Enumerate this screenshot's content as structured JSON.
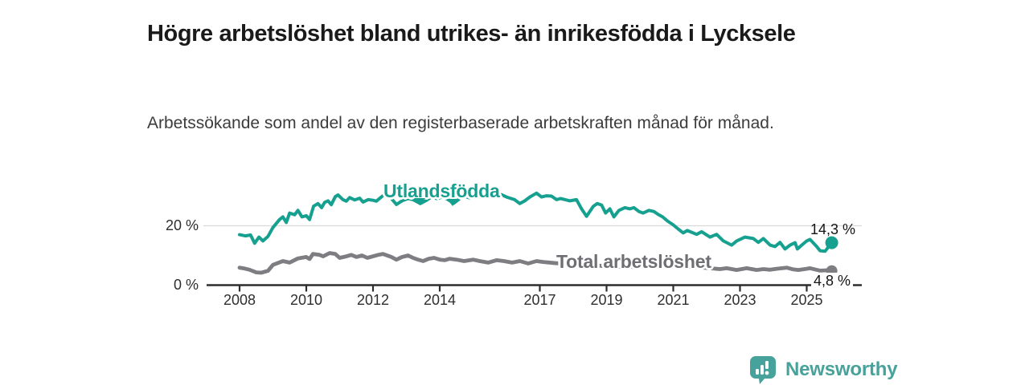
{
  "header": {
    "title": "Högre arbetslöshet bland utrikes- än inrikesfödda i Lycksele",
    "subtitle": "Arbetssökande som andel av den registerbaserade arbetskraften månad för månad."
  },
  "footer": {
    "brand": "Newsworthy",
    "logo_icon": "bar-chart-speech-bubble-icon"
  },
  "colors": {
    "accent_teal": "#16a08f",
    "series_gray": "#7d7d82",
    "gray_label": "#6e6e73",
    "logo_teal": "#46a29a",
    "gridline": "#d9d9d9",
    "axis": "#2d2d2d",
    "text": "#1a1a1a"
  },
  "chart_data": {
    "type": "line",
    "title": "Högre arbetslöshet bland utrikes- än inrikesfödda i Lycksele",
    "subtitle": "Arbetssökande som andel av den registerbaserade arbetskraften månad för månad.",
    "grid": "horizontal-20-only",
    "legend_position": "inline-labels",
    "x_axis": {
      "range": [
        2008,
        2025.75
      ],
      "ticks": [
        2008,
        2010,
        2012,
        2014,
        2017,
        2019,
        2021,
        2023,
        2025
      ]
    },
    "y_axis": {
      "unit": "%",
      "range": [
        0,
        32
      ],
      "ticks": [
        {
          "value": 0,
          "label": "0 %"
        },
        {
          "value": 20,
          "label": "20 %"
        }
      ]
    },
    "series": [
      {
        "name": "Utlandsfödda",
        "color": "#16a08f",
        "end_label": "14,3 %",
        "end_value": 14.3,
        "points": [
          [
            2008.0,
            17.0
          ],
          [
            2008.17,
            16.6
          ],
          [
            2008.33,
            16.9
          ],
          [
            2008.45,
            14.1
          ],
          [
            2008.58,
            16.2
          ],
          [
            2008.7,
            14.9
          ],
          [
            2008.85,
            16.4
          ],
          [
            2009.0,
            19.4
          ],
          [
            2009.2,
            22.1
          ],
          [
            2009.3,
            23.0
          ],
          [
            2009.4,
            21.1
          ],
          [
            2009.5,
            24.3
          ],
          [
            2009.65,
            23.7
          ],
          [
            2009.75,
            25.2
          ],
          [
            2009.87,
            23.0
          ],
          [
            2010.0,
            23.4
          ],
          [
            2010.1,
            22.1
          ],
          [
            2010.22,
            26.6
          ],
          [
            2010.35,
            27.5
          ],
          [
            2010.46,
            26.1
          ],
          [
            2010.55,
            27.9
          ],
          [
            2010.65,
            28.4
          ],
          [
            2010.75,
            27.1
          ],
          [
            2010.87,
            29.8
          ],
          [
            2010.95,
            30.4
          ],
          [
            2011.1,
            28.8
          ],
          [
            2011.2,
            28.3
          ],
          [
            2011.3,
            29.5
          ],
          [
            2011.45,
            28.7
          ],
          [
            2011.6,
            29.3
          ],
          [
            2011.7,
            28.0
          ],
          [
            2011.85,
            28.8
          ],
          [
            2012.0,
            28.6
          ],
          [
            2012.1,
            28.3
          ],
          [
            2012.25,
            29.7
          ],
          [
            2012.4,
            31.0
          ],
          [
            2012.55,
            29.2
          ],
          [
            2012.7,
            27.2
          ],
          [
            2012.87,
            28.4
          ],
          [
            2013.05,
            29.2
          ],
          [
            2013.2,
            28.8
          ],
          [
            2013.42,
            27.5
          ],
          [
            2013.6,
            28.6
          ],
          [
            2013.75,
            29.7
          ],
          [
            2013.9,
            29.2
          ],
          [
            2014.1,
            29.7
          ],
          [
            2014.25,
            28.8
          ],
          [
            2014.42,
            27.6
          ],
          [
            2014.6,
            29.2
          ],
          [
            2014.75,
            29.9
          ],
          [
            2014.9,
            29.4
          ],
          [
            2015.1,
            29.8
          ],
          [
            2015.25,
            30.2
          ],
          [
            2015.4,
            29.5
          ],
          [
            2015.6,
            30.0
          ],
          [
            2015.83,
            30.6
          ],
          [
            2016.0,
            29.7
          ],
          [
            2016.24,
            28.8
          ],
          [
            2016.4,
            27.5
          ],
          [
            2016.55,
            28.4
          ],
          [
            2016.7,
            29.7
          ],
          [
            2016.9,
            31.0
          ],
          [
            2017.05,
            29.7
          ],
          [
            2017.2,
            30.1
          ],
          [
            2017.35,
            30.0
          ],
          [
            2017.5,
            28.8
          ],
          [
            2017.62,
            29.2
          ],
          [
            2017.76,
            28.8
          ],
          [
            2017.9,
            28.4
          ],
          [
            2018.1,
            28.8
          ],
          [
            2018.25,
            25.7
          ],
          [
            2018.4,
            23.2
          ],
          [
            2018.6,
            26.5
          ],
          [
            2018.72,
            27.5
          ],
          [
            2018.85,
            27.0
          ],
          [
            2018.97,
            24.3
          ],
          [
            2019.1,
            25.7
          ],
          [
            2019.22,
            23.0
          ],
          [
            2019.37,
            25.2
          ],
          [
            2019.55,
            26.1
          ],
          [
            2019.7,
            25.7
          ],
          [
            2019.82,
            26.1
          ],
          [
            2019.97,
            24.8
          ],
          [
            2020.1,
            24.3
          ],
          [
            2020.27,
            25.2
          ],
          [
            2020.42,
            24.8
          ],
          [
            2020.55,
            23.8
          ],
          [
            2020.68,
            23.0
          ],
          [
            2020.83,
            21.6
          ],
          [
            2021.0,
            20.3
          ],
          [
            2021.15,
            18.9
          ],
          [
            2021.3,
            17.6
          ],
          [
            2021.42,
            18.4
          ],
          [
            2021.55,
            17.8
          ],
          [
            2021.7,
            17.1
          ],
          [
            2021.85,
            18.0
          ],
          [
            2022.1,
            16.2
          ],
          [
            2022.3,
            17.1
          ],
          [
            2022.5,
            14.9
          ],
          [
            2022.75,
            13.5
          ],
          [
            2022.9,
            14.9
          ],
          [
            2023.15,
            16.2
          ],
          [
            2023.4,
            15.7
          ],
          [
            2023.55,
            14.4
          ],
          [
            2023.7,
            15.7
          ],
          [
            2023.9,
            13.5
          ],
          [
            2024.05,
            13.0
          ],
          [
            2024.2,
            14.4
          ],
          [
            2024.35,
            12.2
          ],
          [
            2024.5,
            13.5
          ],
          [
            2024.65,
            14.3
          ],
          [
            2024.72,
            12.2
          ],
          [
            2024.85,
            13.5
          ],
          [
            2025.0,
            14.9
          ],
          [
            2025.1,
            15.4
          ],
          [
            2025.3,
            13.0
          ],
          [
            2025.4,
            11.6
          ],
          [
            2025.55,
            11.4
          ],
          [
            2025.75,
            14.3
          ]
        ]
      },
      {
        "name": "Total arbetslöshet",
        "color": "#7d7d82",
        "end_label": "4,8 %",
        "end_value": 4.8,
        "points": [
          [
            2008.0,
            5.9
          ],
          [
            2008.15,
            5.6
          ],
          [
            2008.3,
            5.2
          ],
          [
            2008.5,
            4.3
          ],
          [
            2008.65,
            4.2
          ],
          [
            2008.85,
            4.8
          ],
          [
            2009.0,
            6.8
          ],
          [
            2009.3,
            8.1
          ],
          [
            2009.5,
            7.6
          ],
          [
            2009.75,
            9.0
          ],
          [
            2010.0,
            9.5
          ],
          [
            2010.1,
            8.8
          ],
          [
            2010.2,
            10.5
          ],
          [
            2010.4,
            10.2
          ],
          [
            2010.5,
            9.7
          ],
          [
            2010.7,
            10.8
          ],
          [
            2010.87,
            10.5
          ],
          [
            2011.0,
            9.2
          ],
          [
            2011.2,
            9.7
          ],
          [
            2011.35,
            10.2
          ],
          [
            2011.5,
            9.5
          ],
          [
            2011.67,
            10.0
          ],
          [
            2011.83,
            9.2
          ],
          [
            2012.0,
            9.7
          ],
          [
            2012.15,
            10.2
          ],
          [
            2012.3,
            10.5
          ],
          [
            2012.55,
            9.5
          ],
          [
            2012.7,
            8.6
          ],
          [
            2012.87,
            9.5
          ],
          [
            2013.05,
            10.0
          ],
          [
            2013.2,
            9.2
          ],
          [
            2013.35,
            8.6
          ],
          [
            2013.5,
            8.1
          ],
          [
            2013.67,
            8.9
          ],
          [
            2013.83,
            9.2
          ],
          [
            2014.0,
            8.6
          ],
          [
            2014.15,
            8.4
          ],
          [
            2014.3,
            8.9
          ],
          [
            2014.5,
            8.6
          ],
          [
            2014.73,
            8.1
          ],
          [
            2015.0,
            8.6
          ],
          [
            2015.2,
            8.1
          ],
          [
            2015.45,
            7.6
          ],
          [
            2015.7,
            8.4
          ],
          [
            2015.92,
            8.1
          ],
          [
            2016.17,
            7.6
          ],
          [
            2016.4,
            8.1
          ],
          [
            2016.65,
            7.3
          ],
          [
            2016.9,
            8.1
          ],
          [
            2017.1,
            7.8
          ],
          [
            2017.4,
            7.5
          ],
          [
            2017.7,
            7.2
          ],
          [
            2018.0,
            6.9
          ],
          [
            2018.3,
            6.6
          ],
          [
            2018.6,
            6.8
          ],
          [
            2018.9,
            6.4
          ],
          [
            2019.2,
            6.2
          ],
          [
            2019.5,
            6.4
          ],
          [
            2019.8,
            6.1
          ],
          [
            2020.1,
            6.8
          ],
          [
            2020.4,
            7.2
          ],
          [
            2020.7,
            7.0
          ],
          [
            2021.0,
            6.7
          ],
          [
            2021.3,
            6.4
          ],
          [
            2021.6,
            6.2
          ],
          [
            2021.9,
            5.9
          ],
          [
            2022.1,
            5.7
          ],
          [
            2022.4,
            5.4
          ],
          [
            2022.6,
            5.7
          ],
          [
            2022.9,
            5.1
          ],
          [
            2023.2,
            5.7
          ],
          [
            2023.5,
            5.1
          ],
          [
            2023.7,
            5.4
          ],
          [
            2023.9,
            5.2
          ],
          [
            2024.1,
            5.5
          ],
          [
            2024.4,
            5.9
          ],
          [
            2024.6,
            5.3
          ],
          [
            2024.75,
            5.1
          ],
          [
            2025.0,
            5.5
          ],
          [
            2025.1,
            5.7
          ],
          [
            2025.4,
            4.9
          ],
          [
            2025.6,
            5.0
          ],
          [
            2025.75,
            4.8
          ]
        ]
      }
    ]
  }
}
